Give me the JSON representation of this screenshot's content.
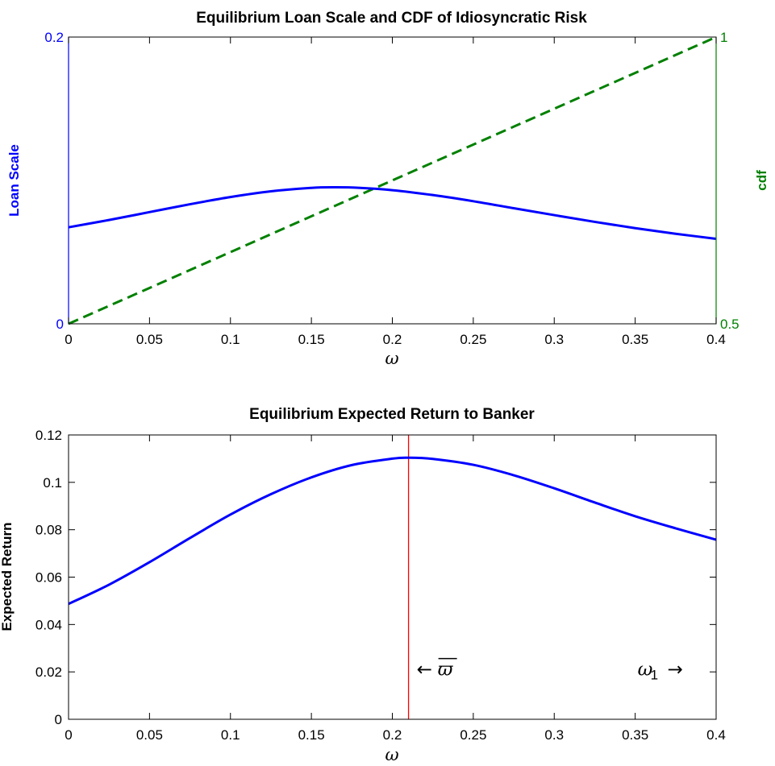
{
  "chart_data": [
    {
      "type": "line",
      "title": "Equilibrium Loan Scale and CDF of Idiosyncratic Risk",
      "xlabel": "ω",
      "ylabel_left": "Loan Scale",
      "ylabel_right": "cdf",
      "xlim": [
        0,
        0.4
      ],
      "ylim_left": [
        0,
        0.2
      ],
      "ylim_right": [
        0.5,
        1
      ],
      "x_ticks": [
        "0",
        "0.05",
        "0.1",
        "0.15",
        "0.2",
        "0.25",
        "0.3",
        "0.35",
        "0.4"
      ],
      "y_ticks_left": [
        "0",
        "0.2"
      ],
      "y_ticks_right": [
        "0.5",
        "1"
      ],
      "left_axis_color": "#0000ff",
      "right_axis_color": "#008000",
      "series": [
        {
          "axis": "left",
          "color": "#0000ff",
          "style": "solid",
          "x": [
            0,
            0.025,
            0.05,
            0.075,
            0.1,
            0.125,
            0.15,
            0.165,
            0.18,
            0.2,
            0.225,
            0.25,
            0.275,
            0.3,
            0.325,
            0.35,
            0.375,
            0.4
          ],
          "y": [
            0.0673,
            0.0724,
            0.0779,
            0.0834,
            0.0884,
            0.0924,
            0.0948,
            0.0952,
            0.0948,
            0.0932,
            0.0898,
            0.0855,
            0.0806,
            0.0758,
            0.0711,
            0.0667,
            0.0628,
            0.0593
          ]
        },
        {
          "axis": "right",
          "color": "#008000",
          "style": "dashed",
          "x": [
            0,
            0.4
          ],
          "y": [
            0.5,
            1
          ]
        }
      ]
    },
    {
      "type": "line",
      "title": "Equilibrium Expected Return to Banker",
      "xlabel": "ω",
      "ylabel": "Expected Return",
      "xlim": [
        0,
        0.4
      ],
      "ylim": [
        0,
        0.12
      ],
      "x_ticks": [
        "0",
        "0.05",
        "0.1",
        "0.15",
        "0.2",
        "0.25",
        "0.3",
        "0.35",
        "0.4"
      ],
      "y_ticks": [
        "0",
        "0.02",
        "0.04",
        "0.06",
        "0.08",
        "0.1",
        "0.12"
      ],
      "series": [
        {
          "color": "#0000ff",
          "style": "solid",
          "x": [
            0,
            0.025,
            0.05,
            0.075,
            0.1,
            0.125,
            0.15,
            0.175,
            0.2,
            0.21,
            0.225,
            0.25,
            0.275,
            0.3,
            0.325,
            0.35,
            0.375,
            0.4
          ],
          "y": [
            0.0487,
            0.0568,
            0.0663,
            0.0765,
            0.0864,
            0.095,
            0.1021,
            0.1073,
            0.11,
            0.1104,
            0.1099,
            0.1074,
            0.103,
            0.0975,
            0.0915,
            0.0857,
            0.0806,
            0.0758
          ]
        }
      ],
      "vline": {
        "x": 0.21,
        "color": "#ff0000"
      },
      "annotations": [
        {
          "arrow": "←",
          "label": "ϖ",
          "x": 0.215,
          "y": 0.0185
        },
        {
          "label": "ω",
          "subscript": "1",
          "arrow": "→",
          "x": 0.35,
          "y": 0.0185
        }
      ]
    }
  ]
}
